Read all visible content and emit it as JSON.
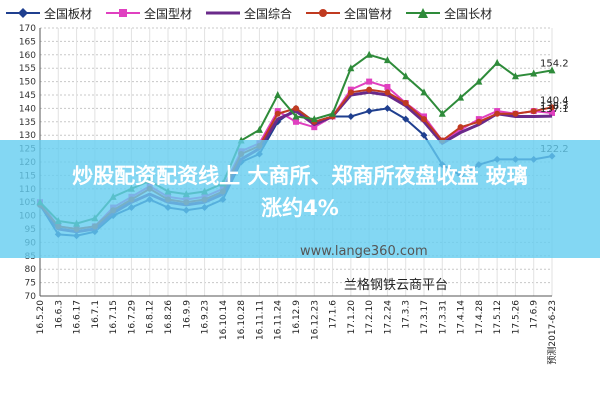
{
  "legend": [
    {
      "label": "全国板材",
      "color": "#1f3f8f",
      "marker": "diamond"
    },
    {
      "label": "全国型材",
      "color": "#e040c0",
      "marker": "square"
    },
    {
      "label": "全国综合",
      "color": "#6a2a8a",
      "marker": "none"
    },
    {
      "label": "全国管材",
      "color": "#c03a20",
      "marker": "circle"
    },
    {
      "label": "全国长材",
      "color": "#2e8b3a",
      "marker": "triangle"
    }
  ],
  "banner": {
    "line1": "炒股配资配资线上 大商所、郑商所夜盘收盘 玻璃",
    "line2": "涨约4%"
  },
  "watermark": "www.lange360.com",
  "platform": "兰格钢铁云商平台",
  "chart_data": {
    "type": "line",
    "title": "",
    "xlabel": "",
    "ylabel": "",
    "ylim": [
      70,
      170
    ],
    "yticks": [
      70,
      75,
      80,
      85,
      90,
      95,
      100,
      105,
      110,
      115,
      120,
      125,
      130,
      135,
      140,
      145,
      150,
      155,
      160,
      165,
      170
    ],
    "grid": true,
    "x_tick_labels": [
      "16.5.20",
      "16.6.3",
      "16.6.17",
      "16.7.1",
      "16.7.15",
      "16.7.29",
      "16.8.12",
      "16.8.26",
      "16.9.9",
      "16.9.23",
      "16.10.14",
      "16.10.28",
      "16.11.11",
      "16.11.24",
      "16.12.9",
      "16.12.23",
      "17.1.6",
      "17.1.20",
      "17.2.10",
      "17.2.24",
      "17.3.3",
      "17.3.17",
      "17.3.31",
      "17.4.14",
      "17.4.28",
      "17.5.12",
      "17.5.26",
      "17.6.9",
      "预测2017-6-23"
    ],
    "end_labels": [
      "154.2",
      "140.4",
      "138.3",
      "137.1",
      "122.2"
    ],
    "series": [
      {
        "name": "全国板材",
        "color": "#1f3f8f",
        "marker": "diamond",
        "values": [
          104,
          93,
          92.5,
          94,
          100,
          103,
          106,
          103,
          102,
          103,
          106,
          120,
          123,
          135,
          140,
          135,
          137,
          137,
          139,
          140,
          136,
          130,
          119,
          115,
          119,
          121,
          121,
          121,
          122.2
        ]
      },
      {
        "name": "全国型材",
        "color": "#e040c0",
        "marker": "square",
        "values": [
          105,
          96,
          95,
          96,
          103,
          107,
          111,
          107,
          106,
          107,
          110,
          124,
          127,
          139,
          135,
          133,
          137,
          147,
          150,
          148,
          142,
          137,
          128,
          132,
          136,
          139,
          138,
          139,
          138.3
        ]
      },
      {
        "name": "全国综合",
        "color": "#6a2a8a",
        "marker": "none",
        "values": [
          104,
          95,
          94,
          95,
          101,
          105,
          108,
          105,
          104,
          105,
          108,
          121,
          125,
          136,
          139,
          134,
          137,
          145,
          146,
          145,
          141,
          135,
          127,
          131,
          134,
          138,
          137,
          137,
          137.1
        ]
      },
      {
        "name": "全国管材",
        "color": "#c03a20",
        "marker": "circle",
        "values": [
          104,
          96,
          95,
          96,
          102,
          106,
          110,
          106,
          105,
          106,
          109,
          123,
          126,
          138,
          140,
          135,
          137,
          146,
          147,
          146,
          142,
          136,
          128,
          133,
          135,
          138,
          138,
          139,
          140.4
        ]
      },
      {
        "name": "全国长材",
        "color": "#2e8b3a",
        "marker": "triangle",
        "values": [
          105,
          98,
          97,
          99,
          107,
          110,
          113,
          109,
          108,
          109,
          112,
          128,
          132,
          145,
          137,
          136,
          138,
          155,
          160,
          158,
          152,
          146,
          138,
          144,
          150,
          157,
          152,
          153,
          154.2
        ]
      }
    ]
  }
}
